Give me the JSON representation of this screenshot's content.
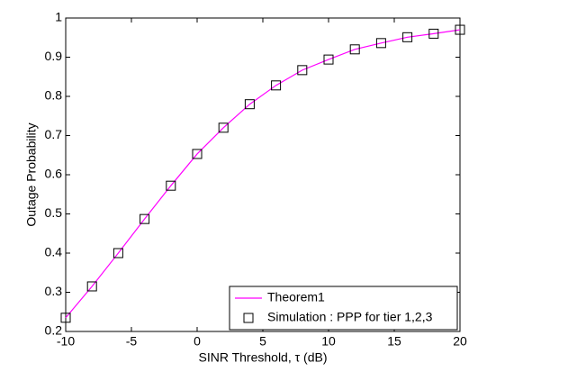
{
  "chart_data": {
    "type": "line",
    "x_label": "SINR Threshold,  τ (dB)",
    "y_label": "Outage Probability",
    "xlim": [
      -10,
      20
    ],
    "xticks": [
      -10,
      -5,
      0,
      5,
      10,
      15,
      20
    ],
    "ylim": [
      0.2,
      1
    ],
    "yticks": [
      0.2,
      0.3,
      0.4,
      0.5,
      0.6,
      0.7,
      0.8,
      0.9,
      1
    ],
    "legend": "lower right",
    "series": [
      {
        "name": "Theorem1",
        "color": "#ff00ff",
        "marker": "none",
        "x": [
          -10,
          -8,
          -6,
          -4,
          -2,
          0,
          2,
          4,
          6,
          8,
          10,
          12,
          14,
          16,
          18,
          20
        ],
        "values": [
          0.235,
          0.315,
          0.4,
          0.487,
          0.572,
          0.653,
          0.72,
          0.78,
          0.828,
          0.867,
          0.894,
          0.92,
          0.936,
          0.951,
          0.96,
          0.97
        ]
      },
      {
        "name": "Simulation : PPP for tier 1,2,3",
        "color": "#000000",
        "marker": "square",
        "x": [
          -10,
          -8,
          -6,
          -4,
          -2,
          0,
          2,
          4,
          6,
          8,
          10,
          12,
          14,
          16,
          18,
          20
        ],
        "values": [
          0.235,
          0.315,
          0.4,
          0.487,
          0.572,
          0.653,
          0.72,
          0.78,
          0.828,
          0.867,
          0.894,
          0.92,
          0.936,
          0.951,
          0.96,
          0.97
        ]
      }
    ]
  }
}
